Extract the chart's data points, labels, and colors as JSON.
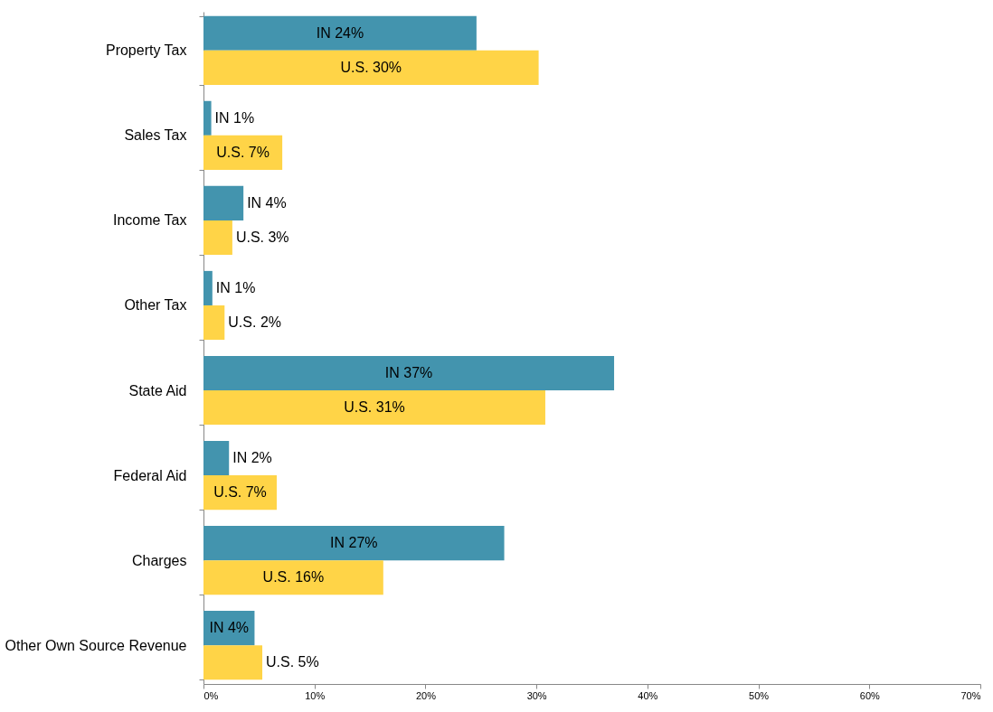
{
  "chart_data": {
    "type": "bar",
    "orientation": "horizontal",
    "categories": [
      "Property Tax",
      "Sales Tax",
      "Income Tax",
      "Other Tax",
      "State Aid",
      "Federal Aid",
      "Charges",
      "Other Own Source Revenue"
    ],
    "series": [
      {
        "color": "#4394ae",
        "values": [
          24.6,
          0.7,
          3.6,
          0.8,
          37.0,
          2.3,
          27.1,
          4.6
        ],
        "value_labels": [
          "IN 24%",
          "IN 1%",
          "IN 4%",
          "IN 1%",
          "IN 37%",
          "IN 2%",
          "IN 27%",
          "IN 4%"
        ]
      },
      {
        "color": "#ffd447",
        "values": [
          30.2,
          7.1,
          2.6,
          1.9,
          30.8,
          6.6,
          16.2,
          5.3
        ],
        "value_labels": [
          "U.S. 30%",
          "U.S. 7%",
          "U.S. 3%",
          "U.S. 2%",
          "U.S. 31%",
          "U.S. 7%",
          "U.S. 16%",
          "U.S. 5%"
        ]
      }
    ],
    "xlim": [
      0,
      70
    ],
    "xticks": [
      {
        "value": 0,
        "label": "0%"
      },
      {
        "value": 10,
        "label": "10%"
      },
      {
        "value": 20,
        "label": "20%"
      },
      {
        "value": 30,
        "label": "30%"
      },
      {
        "value": 40,
        "label": "40%"
      },
      {
        "value": 50,
        "label": "50%"
      },
      {
        "value": 60,
        "label": "60%"
      },
      {
        "value": 70,
        "label": "70%"
      }
    ],
    "grid": false
  }
}
